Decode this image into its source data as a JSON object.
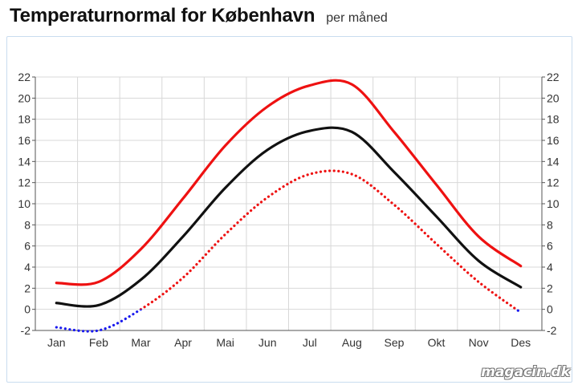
{
  "header": {
    "title": "Temperaturnormal for København",
    "subtitle": "per måned"
  },
  "watermark": "magacin.dk",
  "chart_data": {
    "type": "line",
    "categories": [
      "Jan",
      "Feb",
      "Mar",
      "Apr",
      "Mai",
      "Jun",
      "Jul",
      "Aug",
      "Sep",
      "Okt",
      "Nov",
      "Des"
    ],
    "ylim": [
      -2,
      22
    ],
    "yticks": [
      "-2",
      "0",
      "2",
      "4",
      "6",
      "8",
      "10",
      "12",
      "14",
      "16",
      "18",
      "20",
      "22"
    ],
    "grid": true,
    "series": [
      {
        "values": [
          2.5,
          2.6,
          5.7,
          10.5,
          15.5,
          19.2,
          21.2,
          21.3,
          16.8,
          11.8,
          6.9,
          4.1
        ],
        "color": "#ee1111",
        "style": "solid"
      },
      {
        "values": [
          0.6,
          0.4,
          2.8,
          6.9,
          11.5,
          15.1,
          16.9,
          16.8,
          13.0,
          8.8,
          4.6,
          2.1
        ],
        "color": "#111111",
        "style": "solid"
      },
      {
        "values": [
          -1.7,
          -2.0,
          0.0,
          3.0,
          7.1,
          10.6,
          12.8,
          12.8,
          9.9,
          6.2,
          2.6,
          -0.3
        ],
        "color": "#ee1111",
        "style": "dotted",
        "below_zero_color": "#1a1aee"
      }
    ]
  }
}
